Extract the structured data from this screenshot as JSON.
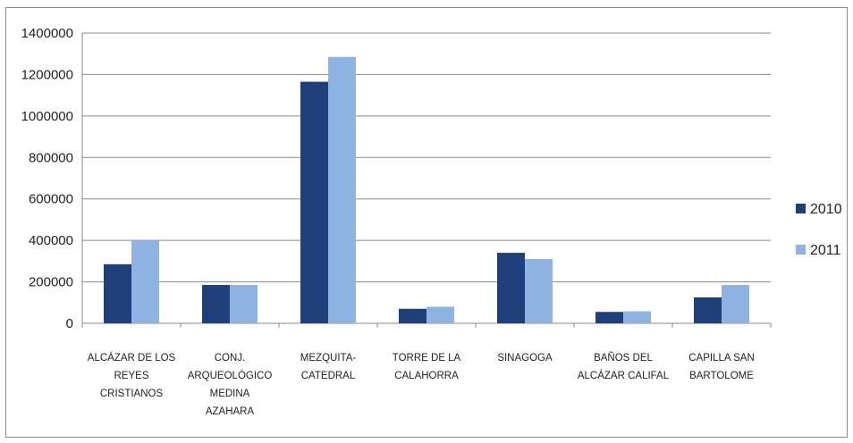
{
  "chart_data": {
    "type": "bar",
    "categories": [
      [
        "ALCÁZAR DE LOS",
        "REYES",
        "CRISTIANOS"
      ],
      [
        "CONJ.",
        "ARQUEOLÓGICO",
        "MEDINA",
        "AZAHARA"
      ],
      [
        "MEZQUITA-",
        "CATEDRAL"
      ],
      [
        "TORRE DE LA",
        "CALAHORRA"
      ],
      [
        "SINAGOGA"
      ],
      [
        "BAÑOS DEL",
        "ALCÁZAR CALIFAL"
      ],
      [
        "CAPILLA SAN",
        "BARTOLOME"
      ]
    ],
    "series": [
      {
        "name": "2010",
        "color": "#1f3f7a",
        "values": [
          285000,
          185000,
          1165000,
          70000,
          340000,
          55000,
          125000
        ]
      },
      {
        "name": "2011",
        "color": "#8fb4e3",
        "values": [
          400000,
          185000,
          1285000,
          80000,
          310000,
          58000,
          185000
        ]
      }
    ],
    "y_ticks": [
      "0",
      "200000",
      "400000",
      "600000",
      "800000",
      "1000000",
      "1200000",
      "1400000"
    ],
    "ylim": [
      0,
      1400000
    ],
    "grid": true,
    "legend": "right"
  }
}
